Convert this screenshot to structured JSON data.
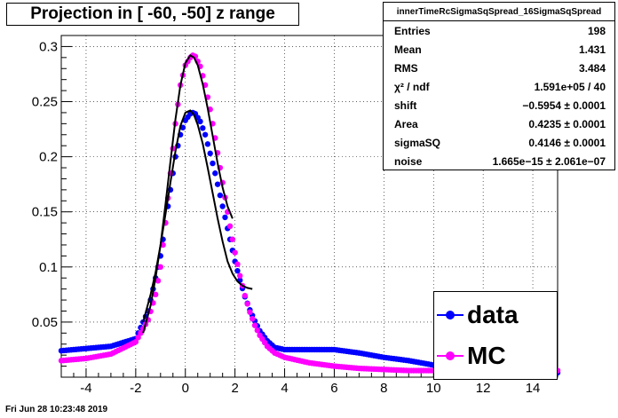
{
  "title": "Projection in [ -60, -50] z range",
  "stats": {
    "name": "innerTimeRcSigmaSqSpread_16SigmaSqSpread",
    "rows": [
      {
        "label": "Entries",
        "value": "198"
      },
      {
        "label": "Mean",
        "value": "1.431"
      },
      {
        "label": "RMS",
        "value": "3.484"
      },
      {
        "label": "χ² / ndf",
        "value": "1.591e+05 / 40"
      },
      {
        "label": "shift",
        "value": "−0.5954 ± 0.0001"
      },
      {
        "label": "Area",
        "value": "0.4235 ± 0.0001"
      },
      {
        "label": "sigmaSQ",
        "value": "0.4146 ± 0.0001"
      },
      {
        "label": "noise",
        "value": "1.665e−15 ± 2.061e−07"
      }
    ]
  },
  "legend": [
    {
      "label": "data",
      "color": "#0000ff"
    },
    {
      "label": "MC",
      "color": "#ff00ff"
    }
  ],
  "footer": "Fri Jun 28 10:23:48 2019",
  "chart_data": {
    "type": "scatter",
    "xlim": [
      -5,
      15
    ],
    "ylim": [
      0,
      0.31
    ],
    "xticks": [
      -4,
      -2,
      0,
      2,
      4,
      6,
      8,
      10,
      12,
      14
    ],
    "yticks": [
      0.05,
      0.1,
      0.15,
      0.2,
      0.25,
      0.3
    ],
    "grid": true,
    "series": [
      {
        "name": "data",
        "color": "#0000ff",
        "x": [
          -5.0,
          -4.0,
          -3.0,
          -2.0,
          -1.5,
          -1.2,
          -1.0,
          -0.8,
          -0.6,
          -0.4,
          -0.2,
          0.0,
          0.2,
          0.3,
          0.4,
          0.6,
          0.8,
          1.0,
          1.2,
          1.4,
          1.6,
          1.8,
          2.0,
          2.2,
          2.4,
          2.6,
          2.8,
          3.0,
          3.3,
          3.6,
          4.0,
          5.0,
          6.0,
          7.0,
          8.0,
          9.0,
          10.0,
          11.0,
          12.0,
          13.0,
          14.0,
          15.0
        ],
        "y": [
          0.024,
          0.026,
          0.028,
          0.035,
          0.06,
          0.09,
          0.11,
          0.14,
          0.17,
          0.2,
          0.22,
          0.233,
          0.239,
          0.24,
          0.239,
          0.232,
          0.22,
          0.203,
          0.185,
          0.165,
          0.145,
          0.125,
          0.105,
          0.088,
          0.073,
          0.061,
          0.051,
          0.042,
          0.033,
          0.027,
          0.025,
          0.025,
          0.025,
          0.022,
          0.018,
          0.015,
          0.011,
          0.008,
          0.006,
          0.005,
          0.004,
          0.004
        ]
      },
      {
        "name": "MC",
        "color": "#ff00ff",
        "x": [
          -5.0,
          -4.0,
          -3.0,
          -2.0,
          -1.5,
          -1.2,
          -1.0,
          -0.8,
          -0.6,
          -0.4,
          -0.2,
          0.0,
          0.2,
          0.3,
          0.4,
          0.6,
          0.8,
          1.0,
          1.2,
          1.4,
          1.6,
          1.8,
          2.0,
          2.2,
          2.4,
          2.6,
          2.8,
          3.0,
          3.3,
          3.6,
          4.0,
          5.0,
          6.0,
          7.0,
          8.0,
          9.0,
          10.0,
          11.0,
          12.0,
          13.0,
          14.0,
          15.0
        ],
        "y": [
          0.015,
          0.017,
          0.021,
          0.032,
          0.052,
          0.075,
          0.1,
          0.14,
          0.185,
          0.23,
          0.265,
          0.283,
          0.29,
          0.292,
          0.291,
          0.282,
          0.265,
          0.243,
          0.217,
          0.19,
          0.163,
          0.137,
          0.113,
          0.092,
          0.074,
          0.059,
          0.047,
          0.038,
          0.028,
          0.022,
          0.018,
          0.013,
          0.01,
          0.008,
          0.007,
          0.006,
          0.006,
          0.006,
          0.006,
          0.006,
          0.006,
          0.006
        ]
      }
    ],
    "fits": [
      {
        "x": [
          -1.7,
          -1.4,
          -1.2,
          -1.0,
          -0.8,
          -0.6,
          -0.4,
          -0.2,
          0.0,
          0.2,
          0.35,
          0.5,
          0.7,
          0.9,
          1.1,
          1.3,
          1.5,
          1.7,
          1.9,
          2.1,
          2.3,
          2.5,
          2.7
        ],
        "y": [
          0.05,
          0.075,
          0.095,
          0.12,
          0.148,
          0.177,
          0.205,
          0.228,
          0.24,
          0.242,
          0.238,
          0.229,
          0.212,
          0.19,
          0.167,
          0.144,
          0.123,
          0.105,
          0.094,
          0.087,
          0.083,
          0.081,
          0.08
        ]
      },
      {
        "x": [
          -1.7,
          -1.4,
          -1.2,
          -1.0,
          -0.8,
          -0.6,
          -0.4,
          -0.2,
          0.0,
          0.2,
          0.35,
          0.5,
          0.7,
          0.9,
          1.1,
          1.3,
          1.5,
          1.7,
          1.9
        ],
        "y": [
          0.04,
          0.065,
          0.09,
          0.12,
          0.157,
          0.196,
          0.234,
          0.265,
          0.285,
          0.292,
          0.29,
          0.283,
          0.266,
          0.244,
          0.219,
          0.194,
          0.172,
          0.155,
          0.144
        ]
      }
    ]
  }
}
